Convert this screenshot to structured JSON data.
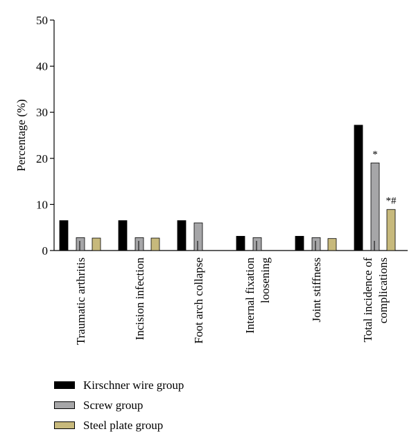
{
  "chart_data": {
    "type": "bar",
    "ylabel": "Percentage (%)",
    "xlabel": "",
    "ylim": [
      0,
      50
    ],
    "yticks": [
      0,
      10,
      20,
      30,
      40,
      50
    ],
    "grid": false,
    "legend_position": "bottom-left",
    "categories": [
      [
        "Traumatic arthritis"
      ],
      [
        "Incision infection"
      ],
      [
        "Foot arch collapse"
      ],
      [
        "Internal fixation",
        "loosening"
      ],
      [
        "Joint stiffness"
      ],
      [
        "Total incidence of",
        "complications"
      ]
    ],
    "series": [
      {
        "name": "Kirschner wire group",
        "color": "#000000",
        "values": [
          6.5,
          6.5,
          6.5,
          3.1,
          3.1,
          27.2
        ]
      },
      {
        "name": "Screw group",
        "color": "#a6a6a8",
        "values": [
          2.8,
          2.8,
          6.0,
          2.8,
          2.8,
          19.0
        ]
      },
      {
        "name": "Steel plate group",
        "color": "#c7b97c",
        "values": [
          2.7,
          2.7,
          0,
          0,
          2.6,
          8.9
        ]
      }
    ],
    "annotations": [
      {
        "category_index": 5,
        "series_index": 1,
        "text": "*"
      },
      {
        "category_index": 5,
        "series_index": 2,
        "text": "*#"
      }
    ]
  }
}
